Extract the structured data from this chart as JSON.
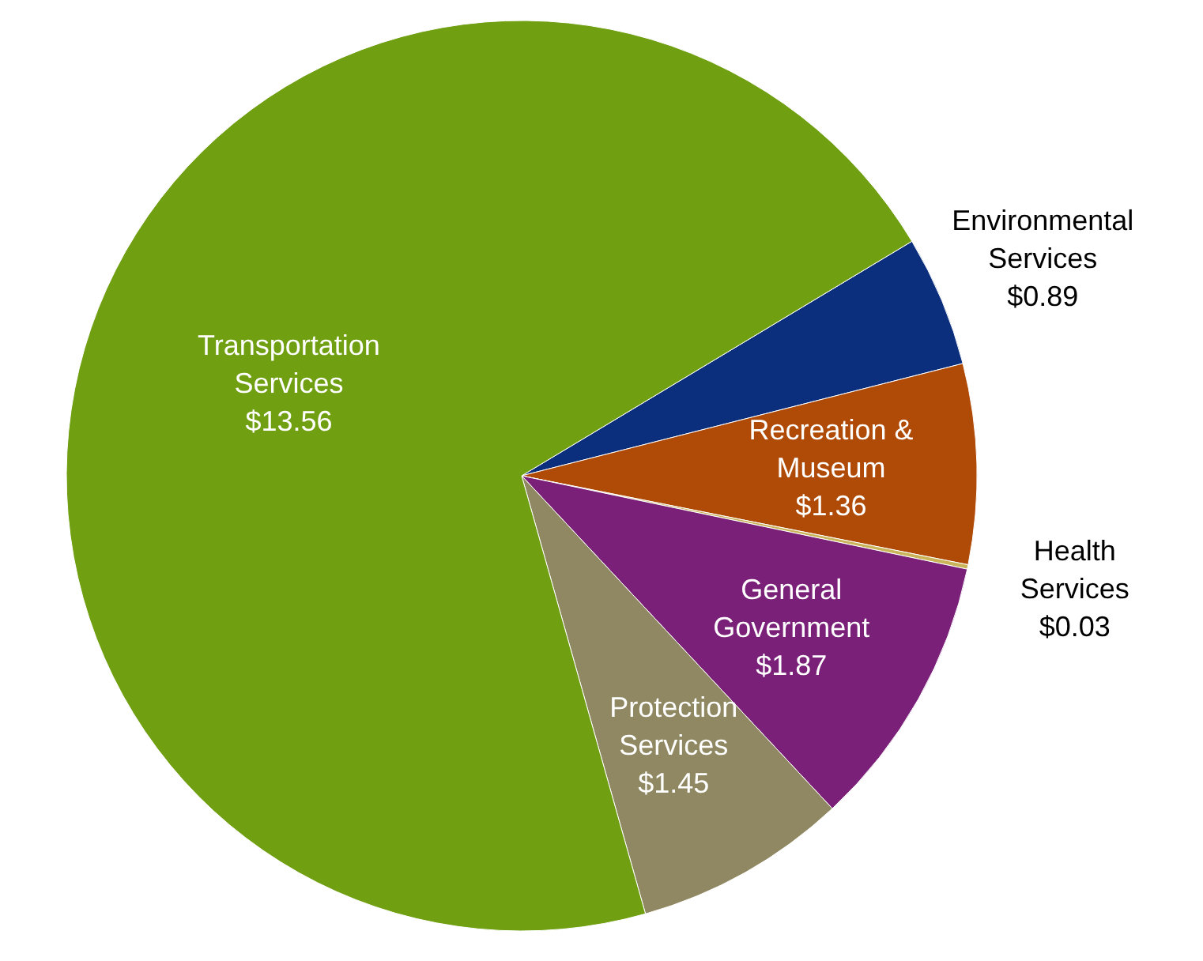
{
  "chart_data": {
    "type": "pie",
    "categories": [
      "Environmental Services",
      "Recreation & Museum",
      "Health Services",
      "General Government",
      "Protection Services",
      "Transportation Services"
    ],
    "values": [
      0.89,
      1.36,
      0.03,
      1.87,
      1.45,
      13.56
    ],
    "value_labels": [
      "$0.89",
      "$1.36",
      "$0.03",
      "$1.87",
      "$1.45",
      "$13.56"
    ],
    "colors": [
      "#0b2f7c",
      "#b04a07",
      "#c9b45a",
      "#7a2079",
      "#8f8862",
      "#70a012"
    ]
  }
}
